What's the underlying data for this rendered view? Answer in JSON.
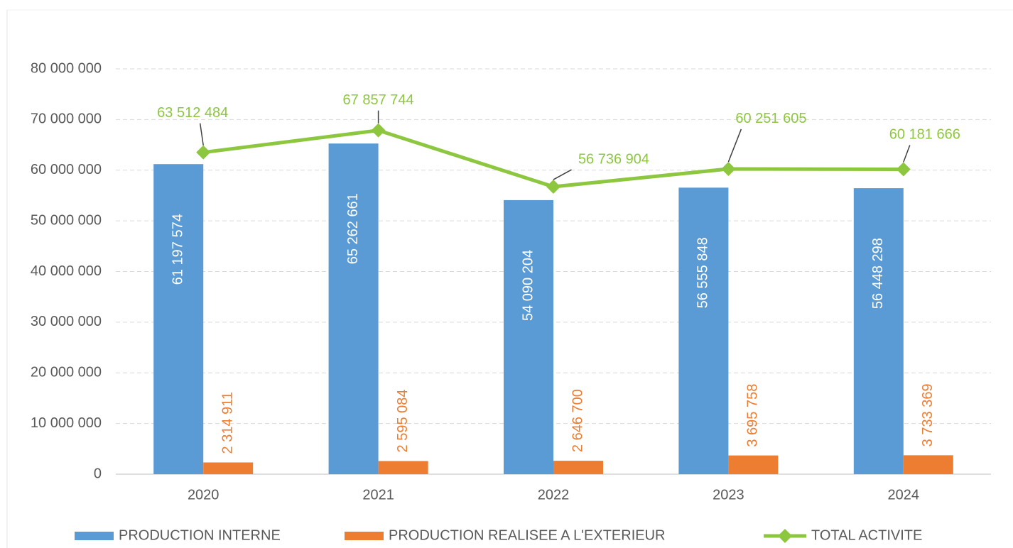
{
  "chart_data": {
    "type": "bar_line",
    "categories": [
      "2020",
      "2021",
      "2022",
      "2023",
      "2024"
    ],
    "series": [
      {
        "name": "PRODUCTION INTERNE",
        "type": "bar",
        "color": "#5b9bd5",
        "values": [
          61197574,
          65262661,
          54090204,
          56555848,
          56448298
        ],
        "value_labels": [
          "61 197 574",
          "65 262 661",
          "54 090 204",
          "56 555 848",
          "56 448 298"
        ]
      },
      {
        "name": "PRODUCTION REALISEE A L'EXTERIEUR",
        "type": "bar",
        "color": "#ed7d31",
        "values": [
          2314911,
          2595084,
          2646700,
          3695758,
          3733369
        ],
        "value_labels": [
          "2 314 911",
          "2 595 084",
          "2 646 700",
          "3 695 758",
          "3 733 369"
        ]
      },
      {
        "name": "TOTAL ACTIVITE",
        "type": "line",
        "color": "#8dc63f",
        "values": [
          63512484,
          67857744,
          56736904,
          60251605,
          60181666
        ],
        "value_labels": [
          "63 512 484",
          "67 857 744",
          "56 736 904",
          "60 251 605",
          "60 181 666"
        ]
      }
    ],
    "ylim": [
      0,
      80000000
    ],
    "yticks": [
      0,
      {
        "value": 10000000,
        "label": "10 000 000"
      },
      {
        "value": 20000000,
        "label": "20 000 000"
      },
      {
        "value": 30000000,
        "label": "30 000 000"
      },
      {
        "value": 40000000,
        "label": "40 000 000"
      },
      {
        "value": 50000000,
        "label": "50 000 000"
      },
      {
        "value": 60000000,
        "label": "60 000 000"
      },
      {
        "value": 70000000,
        "label": "70 000 000"
      },
      {
        "value": 80000000,
        "label": "80 000 000"
      }
    ],
    "grid": true,
    "legend": "bottom"
  }
}
